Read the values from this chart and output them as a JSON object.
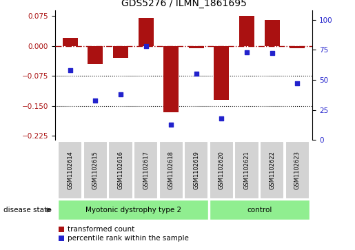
{
  "title": "GDS5276 / ILMN_1861695",
  "samples": [
    "GSM1102614",
    "GSM1102615",
    "GSM1102616",
    "GSM1102617",
    "GSM1102618",
    "GSM1102619",
    "GSM1102620",
    "GSM1102621",
    "GSM1102622",
    "GSM1102623"
  ],
  "red_values": [
    0.02,
    -0.045,
    -0.03,
    0.07,
    -0.165,
    -0.005,
    -0.135,
    0.075,
    0.065,
    -0.005
  ],
  "blue_values": [
    58,
    33,
    38,
    78,
    13,
    55,
    18,
    73,
    72,
    47
  ],
  "group1_label": "Myotonic dystrophy type 2",
  "group1_indices": [
    0,
    1,
    2,
    3,
    4,
    5
  ],
  "group2_label": "control",
  "group2_indices": [
    6,
    7,
    8,
    9
  ],
  "disease_state_label": "disease state",
  "ylim_left": [
    -0.235,
    0.09
  ],
  "ylim_right": [
    0,
    108
  ],
  "yticks_left": [
    0.075,
    0,
    -0.075,
    -0.15,
    -0.225
  ],
  "yticks_right": [
    100,
    75,
    50,
    25,
    0
  ],
  "hline_y": 0,
  "dotted_lines": [
    -0.075,
    -0.15
  ],
  "bar_color": "#aa1111",
  "dot_color": "#2222cc",
  "group1_bg": "#90ee90",
  "group2_bg": "#90ee90",
  "sample_bg": "#d3d3d3",
  "legend_red_label": "transformed count",
  "legend_blue_label": "percentile rank within the sample"
}
